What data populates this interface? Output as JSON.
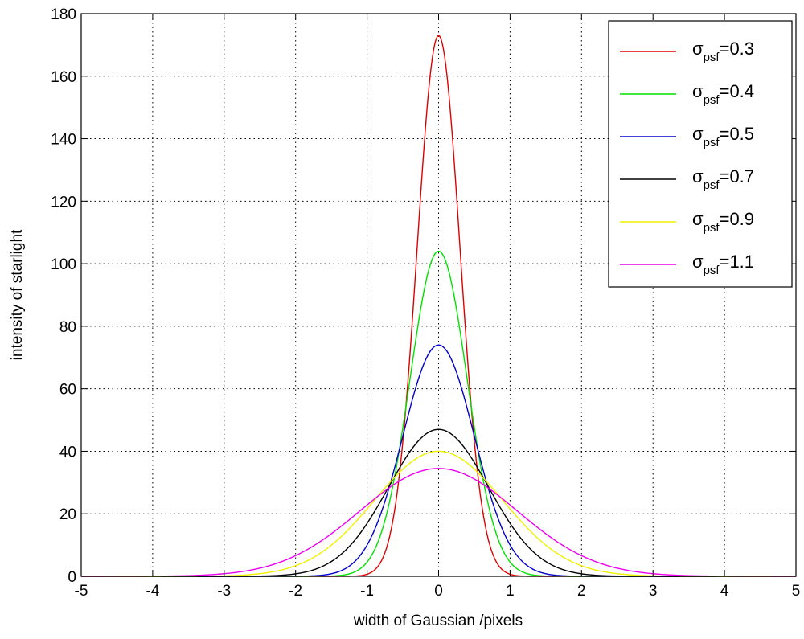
{
  "chart_data": {
    "type": "line",
    "title": "",
    "xlabel": "width of Gaussian /pixels",
    "ylabel": "intensity of starlight",
    "xlim": [
      -5,
      5
    ],
    "ylim": [
      0,
      180
    ],
    "xticks": [
      -5,
      -4,
      -3,
      -2,
      -1,
      0,
      1,
      2,
      3,
      4,
      5
    ],
    "yticks": [
      0,
      20,
      40,
      60,
      80,
      100,
      120,
      140,
      160,
      180
    ],
    "grid": true,
    "legend_position": "top-right",
    "series": [
      {
        "symbol": "σ",
        "sub": "psf",
        "suffix": "=0.3",
        "sigma": 0.3,
        "peak": 173,
        "color": "#e00000"
      },
      {
        "symbol": "σ",
        "sub": "psf",
        "suffix": "=0.4",
        "sigma": 0.4,
        "peak": 104,
        "color": "#00e000"
      },
      {
        "symbol": "σ",
        "sub": "psf",
        "suffix": "=0.5",
        "sigma": 0.5,
        "peak": 74,
        "color": "#0000cc"
      },
      {
        "symbol": "σ",
        "sub": "psf",
        "suffix": "=0.7",
        "sigma": 0.7,
        "peak": 47,
        "color": "#000000"
      },
      {
        "symbol": "σ",
        "sub": "psf",
        "suffix": "=0.9",
        "sigma": 0.9,
        "peak": 40,
        "color": "#f0f000"
      },
      {
        "symbol": "σ",
        "sub": "psf",
        "suffix": "=1.1",
        "sigma": 1.1,
        "peak": 34.5,
        "color": "#ee00ee"
      }
    ]
  }
}
